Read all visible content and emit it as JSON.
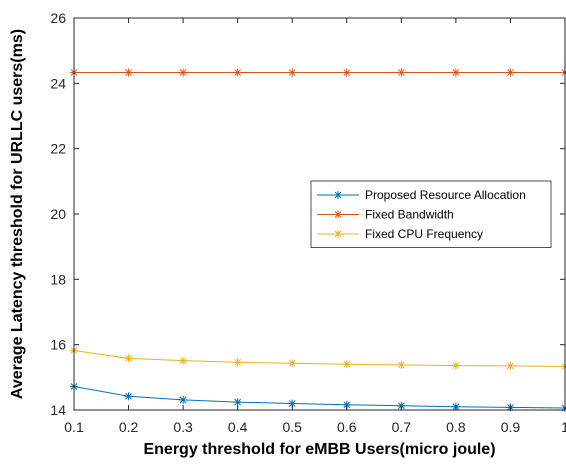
{
  "chart_data": {
    "type": "line",
    "title": "",
    "xlabel": "Energy threshold for eMBB Users(micro joule)",
    "ylabel": "Average Latency threshold for URLLC users(ms)",
    "xlim": [
      0.1,
      1
    ],
    "ylim": [
      14,
      26
    ],
    "x": [
      0.1,
      0.2,
      0.3,
      0.4,
      0.5,
      0.6,
      0.7,
      0.8,
      0.9,
      1.0
    ],
    "x_ticks": [
      "0.1",
      "0.2",
      "0.3",
      "0.4",
      "0.5",
      "0.6",
      "0.7",
      "0.8",
      "0.9",
      "1"
    ],
    "y_ticks": [
      "14",
      "16",
      "18",
      "20",
      "22",
      "24",
      "26"
    ],
    "grid": false,
    "legend_position": "center-right",
    "marker": "asterisk",
    "series": [
      {
        "name": "Proposed Resource Allocation",
        "color": "#0072BD",
        "values": [
          14.72,
          14.42,
          14.31,
          14.24,
          14.2,
          14.16,
          14.13,
          14.1,
          14.08,
          14.06
        ]
      },
      {
        "name": "Fixed Bandwidth",
        "color": "#D95319",
        "values": [
          24.33,
          24.33,
          24.33,
          24.33,
          24.33,
          24.33,
          24.33,
          24.33,
          24.33,
          24.33
        ]
      },
      {
        "name": "Fixed CPU Frequency",
        "color": "#EDB120",
        "values": [
          15.82,
          15.58,
          15.51,
          15.46,
          15.43,
          15.4,
          15.38,
          15.36,
          15.35,
          15.33
        ]
      }
    ]
  }
}
